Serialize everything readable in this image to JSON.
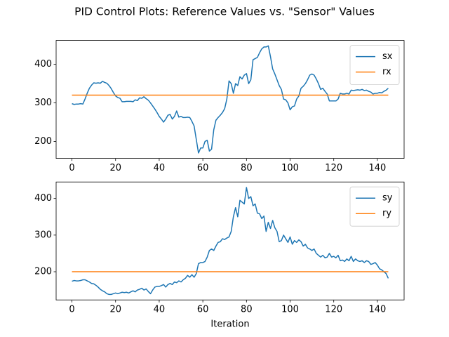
{
  "title": "PID Control Plots: Reference Values vs. \"Sensor\" Values",
  "chart_data": [
    {
      "type": "line",
      "x": [
        0,
        1,
        2,
        3,
        4,
        5,
        6,
        7,
        8,
        9,
        10,
        11,
        12,
        13,
        14,
        15,
        16,
        17,
        18,
        19,
        20,
        21,
        22,
        23,
        24,
        25,
        26,
        27,
        28,
        29,
        30,
        31,
        32,
        33,
        34,
        35,
        36,
        37,
        38,
        39,
        40,
        41,
        42,
        43,
        44,
        45,
        46,
        47,
        48,
        49,
        50,
        51,
        52,
        53,
        54,
        55,
        56,
        57,
        58,
        59,
        60,
        61,
        62,
        63,
        64,
        65,
        66,
        67,
        68,
        69,
        70,
        71,
        72,
        73,
        74,
        75,
        76,
        77,
        78,
        79,
        80,
        81,
        82,
        83,
        84,
        85,
        86,
        87,
        88,
        89,
        90,
        91,
        92,
        93,
        94,
        95,
        96,
        97,
        98,
        99,
        100,
        101,
        102,
        103,
        104,
        105,
        106,
        107,
        108,
        109,
        110,
        111,
        112,
        113,
        114,
        115,
        116,
        117,
        118,
        119,
        120,
        121,
        122,
        123,
        124,
        125,
        126,
        127,
        128,
        129,
        130,
        131,
        132,
        133,
        134,
        135,
        136,
        137,
        138,
        139,
        140,
        141,
        142,
        143,
        144,
        145
      ],
      "series": [
        {
          "name": "sx",
          "color": "#1f77b4",
          "values": [
            298,
            296,
            297,
            297,
            298,
            297,
            310,
            325,
            338,
            346,
            352,
            351,
            352,
            351,
            356,
            353,
            351,
            345,
            337,
            327,
            318,
            314,
            312,
            303,
            303,
            304,
            304,
            304,
            303,
            308,
            306,
            313,
            312,
            316,
            311,
            307,
            300,
            292,
            284,
            275,
            265,
            258,
            250,
            258,
            268,
            270,
            258,
            265,
            279,
            263,
            265,
            262,
            262,
            263,
            262,
            252,
            240,
            205,
            170,
            183,
            183,
            200,
            203,
            175,
            180,
            230,
            255,
            262,
            268,
            275,
            285,
            310,
            357,
            350,
            325,
            350,
            345,
            368,
            362,
            372,
            376,
            350,
            360,
            412,
            415,
            418,
            430,
            440,
            445,
            445,
            448,
            420,
            388,
            375,
            360,
            345,
            335,
            310,
            308,
            300,
            282,
            290,
            292,
            310,
            318,
            338,
            343,
            350,
            360,
            372,
            375,
            372,
            362,
            350,
            335,
            338,
            330,
            323,
            305,
            305,
            305,
            305,
            310,
            325,
            323,
            323,
            325,
            323,
            333,
            332,
            333,
            334,
            333,
            335,
            332,
            333,
            330,
            328,
            323,
            325,
            325,
            327,
            326,
            330,
            333,
            338
          ]
        },
        {
          "name": "rx",
          "color": "#ff7f0e",
          "x": [
            0,
            145
          ],
          "values": [
            320,
            320
          ]
        }
      ],
      "xlim": [
        -7.25,
        152.25
      ],
      "xticks": [
        0,
        20,
        40,
        60,
        80,
        100,
        120,
        140
      ],
      "ylim": [
        156,
        462
      ],
      "yticks": [
        200,
        300,
        400
      ],
      "legend": "upper right"
    },
    {
      "type": "line",
      "x": [
        0,
        1,
        2,
        3,
        4,
        5,
        6,
        7,
        8,
        9,
        10,
        11,
        12,
        13,
        14,
        15,
        16,
        17,
        18,
        19,
        20,
        21,
        22,
        23,
        24,
        25,
        26,
        27,
        28,
        29,
        30,
        31,
        32,
        33,
        34,
        35,
        36,
        37,
        38,
        39,
        40,
        41,
        42,
        43,
        44,
        45,
        46,
        47,
        48,
        49,
        50,
        51,
        52,
        53,
        54,
        55,
        56,
        57,
        58,
        59,
        60,
        61,
        62,
        63,
        64,
        65,
        66,
        67,
        68,
        69,
        70,
        71,
        72,
        73,
        74,
        75,
        76,
        77,
        78,
        79,
        80,
        81,
        82,
        83,
        84,
        85,
        86,
        87,
        88,
        89,
        90,
        91,
        92,
        93,
        94,
        95,
        96,
        97,
        98,
        99,
        100,
        101,
        102,
        103,
        104,
        105,
        106,
        107,
        108,
        109,
        110,
        111,
        112,
        113,
        114,
        115,
        116,
        117,
        118,
        119,
        120,
        121,
        122,
        123,
        124,
        125,
        126,
        127,
        128,
        129,
        130,
        131,
        132,
        133,
        134,
        135,
        136,
        137,
        138,
        139,
        140,
        141,
        142,
        143,
        144,
        145
      ],
      "series": [
        {
          "name": "sy",
          "color": "#1f77b4",
          "values": [
            174,
            176,
            175,
            175,
            176,
            178,
            178,
            175,
            172,
            168,
            167,
            163,
            158,
            152,
            148,
            145,
            140,
            138,
            138,
            140,
            142,
            140,
            142,
            144,
            143,
            144,
            142,
            145,
            148,
            145,
            150,
            152,
            155,
            150,
            153,
            146,
            140,
            150,
            158,
            160,
            160,
            162,
            165,
            158,
            165,
            168,
            165,
            172,
            170,
            175,
            172,
            178,
            182,
            190,
            185,
            192,
            185,
            195,
            222,
            225,
            225,
            228,
            240,
            258,
            262,
            258,
            270,
            280,
            282,
            290,
            288,
            292,
            295,
            310,
            350,
            375,
            350,
            395,
            390,
            385,
            430,
            400,
            405,
            380,
            385,
            360,
            358,
            345,
            352,
            310,
            335,
            318,
            340,
            320,
            310,
            282,
            285,
            300,
            290,
            280,
            295,
            275,
            285,
            280,
            287,
            282,
            270,
            275,
            265,
            262,
            258,
            262,
            250,
            245,
            240,
            245,
            238,
            240,
            250,
            240,
            242,
            238,
            245,
            230,
            232,
            228,
            235,
            230,
            242,
            228,
            235,
            230,
            228,
            230,
            225,
            230,
            228,
            220,
            222,
            225,
            218,
            208,
            205,
            200,
            195,
            182
          ]
        },
        {
          "name": "ry",
          "color": "#ff7f0e",
          "x": [
            0,
            145
          ],
          "values": [
            200,
            200
          ]
        }
      ],
      "xlabel": "Iteration",
      "xlim": [
        -7.25,
        152.25
      ],
      "xticks": [
        0,
        20,
        40,
        60,
        80,
        100,
        120,
        140
      ],
      "ylim": [
        123,
        445
      ],
      "yticks": [
        200,
        300,
        400
      ],
      "legend": "upper right"
    }
  ]
}
